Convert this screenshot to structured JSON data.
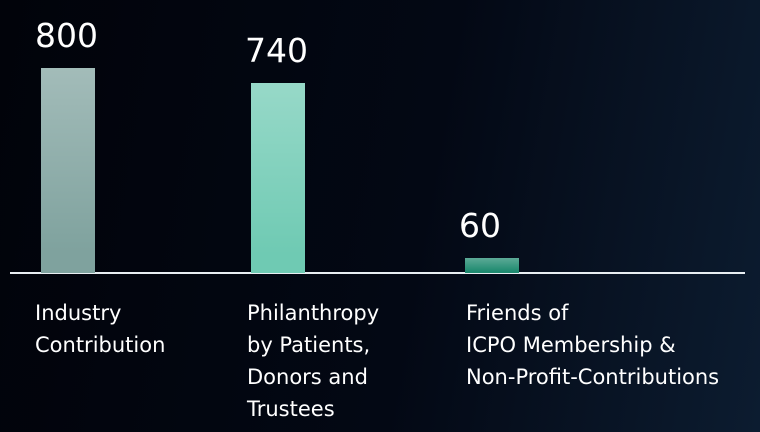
{
  "chart_data": {
    "type": "bar",
    "categories": [
      "Industry\nContribution",
      "Philanthropy\nby Patients,\nDonors and\nTrustees",
      "Friends of\nICPO Membership &\nNon-Profit-Contributions"
    ],
    "values": [
      800,
      740,
      60
    ],
    "colors": [
      "#7fa29e",
      "#6fcab3",
      "#1e8a6f"
    ]
  }
}
